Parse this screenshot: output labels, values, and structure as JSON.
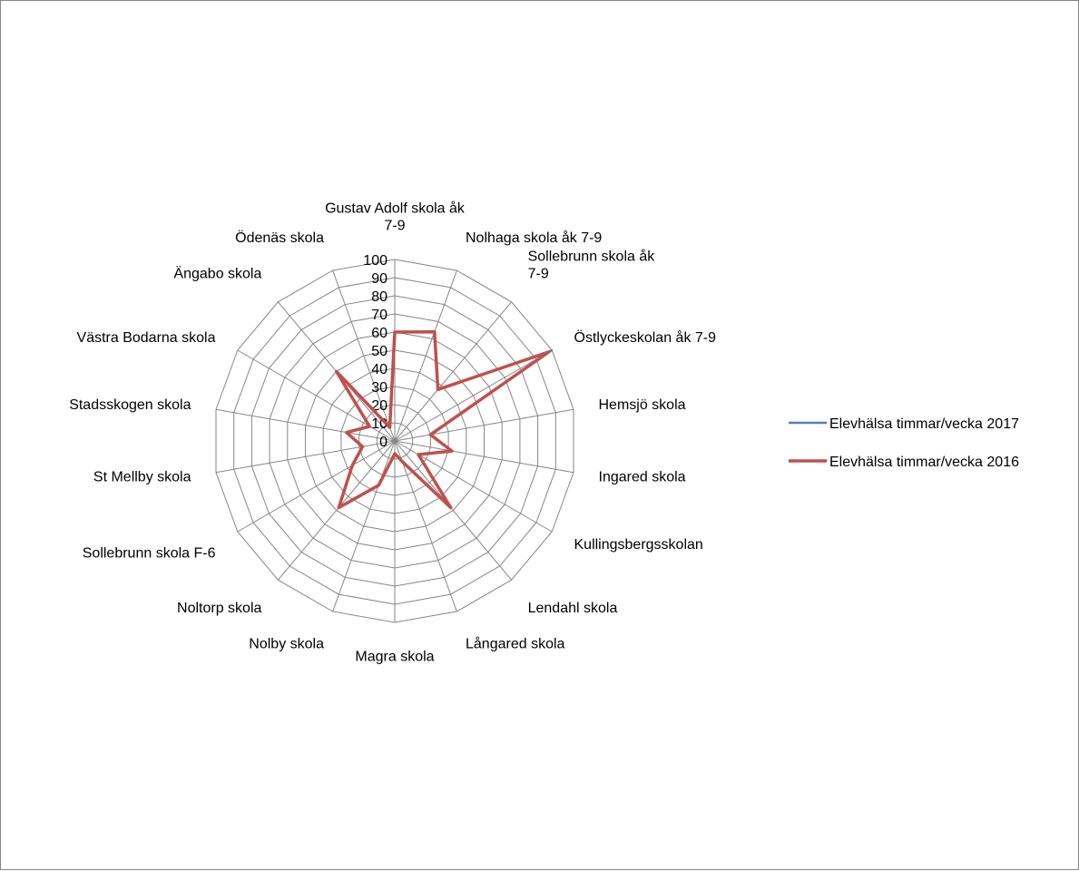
{
  "chart_data": {
    "type": "radar",
    "title": "",
    "categories": [
      [
        "Gustav Adolf skola åk",
        "7-9"
      ],
      [
        "Nolhaga skola åk 7-9"
      ],
      [
        "Sollebrunn skola åk",
        "7-9"
      ],
      [
        "Östlyckeskolan åk 7-9"
      ],
      [
        "Hemsjö skola"
      ],
      [
        "Ingared skola"
      ],
      [
        "Kullingsbergsskolan"
      ],
      [
        "Lendahl skola"
      ],
      [
        "Långared skola"
      ],
      [
        "Magra skola"
      ],
      [
        "Nolby skola"
      ],
      [
        "Noltorp skola"
      ],
      [
        "Sollebrunn skola F-6"
      ],
      [
        "St Mellby skola"
      ],
      [
        "Stadsskogen skola"
      ],
      [
        "Västra Bodarna skola"
      ],
      [
        "Ängabo skola"
      ],
      [
        "Ödenäs skola"
      ]
    ],
    "axis": {
      "min": 0,
      "max": 100,
      "step": 10,
      "tick_labels": [
        "0",
        "10",
        "20",
        "30",
        "40",
        "50",
        "60",
        "70",
        "80",
        "90",
        "100"
      ]
    },
    "grid": true,
    "legend_position": "right",
    "series": [
      {
        "name": "Elevhälsa timmar/vecka 2017",
        "color": "#4F81BD",
        "values": [
          60,
          64,
          37,
          100,
          20,
          32,
          15,
          48,
          12,
          7,
          26,
          48,
          27,
          18,
          27,
          16,
          50,
          8
        ]
      },
      {
        "name": "Elevhälsa timmar/vecka 2016",
        "color": "#C0504D",
        "values": [
          60,
          64,
          37,
          98,
          20,
          32,
          15,
          48,
          12,
          7,
          26,
          48,
          27,
          18,
          27,
          16,
          50,
          8
        ]
      }
    ]
  }
}
